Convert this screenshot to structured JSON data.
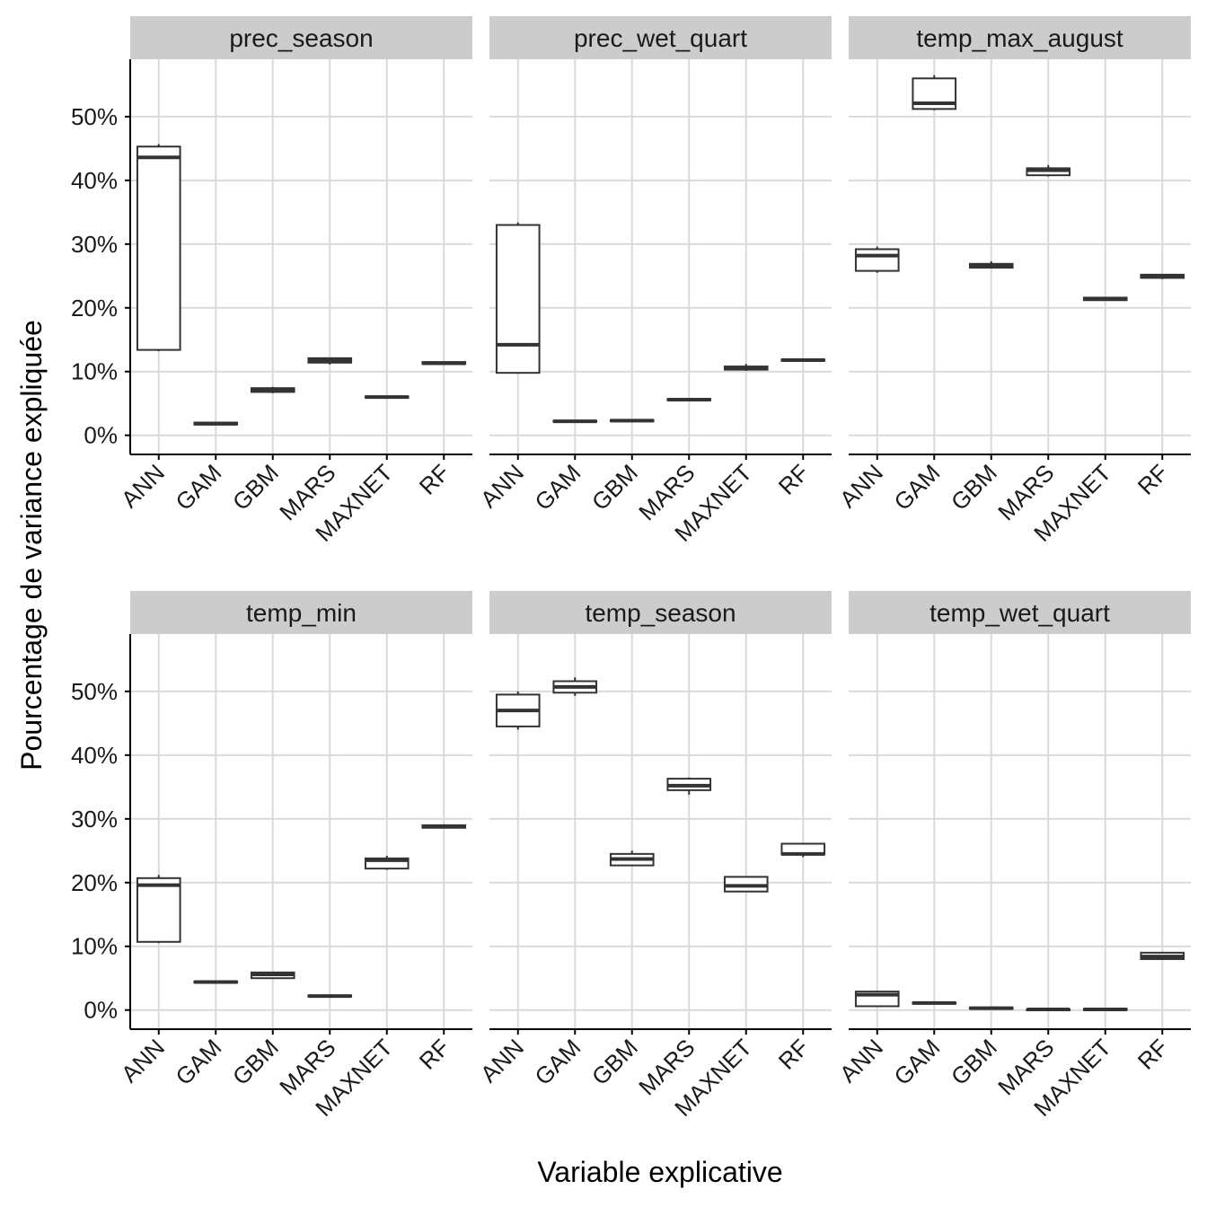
{
  "chart_data": {
    "type": "boxplot",
    "facets": "wrap",
    "xlabel": "Variable explicative",
    "ylabel": "Pourcentage de variance expliquée",
    "categories": [
      "ANN",
      "GAM",
      "GBM",
      "MARS",
      "MAXNET",
      "RF"
    ],
    "y_ticks": [
      0,
      10,
      20,
      30,
      40,
      50
    ],
    "y_tick_labels": [
      "0%",
      "10%",
      "20%",
      "30%",
      "40%",
      "50%"
    ],
    "ylim": [
      -3,
      59
    ],
    "grid": true,
    "colors": {
      "box": "#333333",
      "grid": "#d9d9d9",
      "strip": "#cccccc"
    },
    "panels": [
      {
        "title": "prec_season",
        "boxes": [
          {
            "category": "ANN",
            "min": 13.2,
            "q1": 13.4,
            "median": 43.6,
            "q3": 45.3,
            "max": 45.7
          },
          {
            "category": "GAM",
            "min": 1.6,
            "q1": 1.7,
            "median": 1.8,
            "q3": 2.0,
            "max": 2.1
          },
          {
            "category": "GBM",
            "min": 6.6,
            "q1": 6.8,
            "median": 7.1,
            "q3": 7.4,
            "max": 7.6
          },
          {
            "category": "MARS",
            "min": 11.1,
            "q1": 11.4,
            "median": 11.8,
            "q3": 12.1,
            "max": 12.2
          },
          {
            "category": "MAXNET",
            "min": 5.8,
            "q1": 5.9,
            "median": 6.0,
            "q3": 6.1,
            "max": 6.2
          },
          {
            "category": "RF",
            "min": 11.1,
            "q1": 11.2,
            "median": 11.3,
            "q3": 11.5,
            "max": 11.5
          }
        ]
      },
      {
        "title": "prec_wet_quart",
        "boxes": [
          {
            "category": "ANN",
            "min": 9.7,
            "q1": 9.8,
            "median": 14.2,
            "q3": 33.0,
            "max": 33.4
          },
          {
            "category": "GAM",
            "min": 2.0,
            "q1": 2.1,
            "median": 2.2,
            "q3": 2.3,
            "max": 2.4
          },
          {
            "category": "GBM",
            "min": 2.1,
            "q1": 2.2,
            "median": 2.3,
            "q3": 2.4,
            "max": 2.5
          },
          {
            "category": "MARS",
            "min": 5.4,
            "q1": 5.5,
            "median": 5.6,
            "q3": 5.7,
            "max": 5.8
          },
          {
            "category": "MAXNET",
            "min": 10.1,
            "q1": 10.3,
            "median": 10.6,
            "q3": 10.8,
            "max": 11.2
          },
          {
            "category": "RF",
            "min": 11.6,
            "q1": 11.7,
            "median": 11.8,
            "q3": 11.9,
            "max": 12.0
          }
        ]
      },
      {
        "title": "temp_max_august",
        "boxes": [
          {
            "category": "ANN",
            "min": 25.5,
            "q1": 25.8,
            "median": 28.2,
            "q3": 29.2,
            "max": 29.6
          },
          {
            "category": "GAM",
            "min": 51.0,
            "q1": 51.2,
            "median": 52.1,
            "q3": 56.0,
            "max": 56.5
          },
          {
            "category": "GBM",
            "min": 26.2,
            "q1": 26.3,
            "median": 26.6,
            "q3": 26.9,
            "max": 27.3
          },
          {
            "category": "MARS",
            "min": 40.6,
            "q1": 40.8,
            "median": 41.6,
            "q3": 41.9,
            "max": 42.4
          },
          {
            "category": "MAXNET",
            "min": 21.1,
            "q1": 21.2,
            "median": 21.4,
            "q3": 21.6,
            "max": 21.7
          },
          {
            "category": "RF",
            "min": 24.5,
            "q1": 24.7,
            "median": 25.0,
            "q3": 25.2,
            "max": 25.3
          }
        ]
      },
      {
        "title": "temp_min",
        "boxes": [
          {
            "category": "ANN",
            "min": 10.5,
            "q1": 10.7,
            "median": 19.6,
            "q3": 20.7,
            "max": 21.2
          },
          {
            "category": "GAM",
            "min": 4.2,
            "q1": 4.3,
            "median": 4.4,
            "q3": 4.5,
            "max": 4.6
          },
          {
            "category": "GBM",
            "min": 4.9,
            "q1": 5.0,
            "median": 5.6,
            "q3": 5.9,
            "max": 6.0
          },
          {
            "category": "MARS",
            "min": 2.0,
            "q1": 2.1,
            "median": 2.2,
            "q3": 2.3,
            "max": 2.3
          },
          {
            "category": "MAXNET",
            "min": 22.0,
            "q1": 22.2,
            "median": 23.5,
            "q3": 23.8,
            "max": 24.2
          },
          {
            "category": "RF",
            "min": 28.5,
            "q1": 28.6,
            "median": 28.8,
            "q3": 29.0,
            "max": 29.1
          }
        ]
      },
      {
        "title": "temp_season",
        "boxes": [
          {
            "category": "ANN",
            "min": 44.0,
            "q1": 44.5,
            "median": 47.0,
            "q3": 49.5,
            "max": 50.0
          },
          {
            "category": "GAM",
            "min": 49.3,
            "q1": 49.8,
            "median": 50.7,
            "q3": 51.6,
            "max": 52.2
          },
          {
            "category": "GBM",
            "min": 22.6,
            "q1": 22.7,
            "median": 23.7,
            "q3": 24.5,
            "max": 25.0
          },
          {
            "category": "MARS",
            "min": 33.8,
            "q1": 34.5,
            "median": 35.2,
            "q3": 36.3,
            "max": 36.5
          },
          {
            "category": "MAXNET",
            "min": 18.5,
            "q1": 18.6,
            "median": 19.5,
            "q3": 20.9,
            "max": 20.9
          },
          {
            "category": "RF",
            "min": 24.0,
            "q1": 24.4,
            "median": 24.5,
            "q3": 26.1,
            "max": 26.1
          }
        ]
      },
      {
        "title": "temp_wet_quart",
        "boxes": [
          {
            "category": "ANN",
            "min": 0.5,
            "q1": 0.6,
            "median": 2.4,
            "q3": 2.9,
            "max": 3.0
          },
          {
            "category": "GAM",
            "min": 0.9,
            "q1": 1.0,
            "median": 1.1,
            "q3": 1.2,
            "max": 1.3
          },
          {
            "category": "GBM",
            "min": 0.2,
            "q1": 0.2,
            "median": 0.3,
            "q3": 0.4,
            "max": 0.5
          },
          {
            "category": "MARS",
            "min": 0.0,
            "q1": 0.0,
            "median": 0.1,
            "q3": 0.1,
            "max": 0.2
          },
          {
            "category": "MAXNET",
            "min": 0.0,
            "q1": 0.0,
            "median": 0.1,
            "q3": 0.2,
            "max": 0.2
          },
          {
            "category": "RF",
            "min": 7.9,
            "q1": 8.0,
            "median": 8.4,
            "q3": 9.0,
            "max": 9.1
          }
        ]
      }
    ]
  }
}
